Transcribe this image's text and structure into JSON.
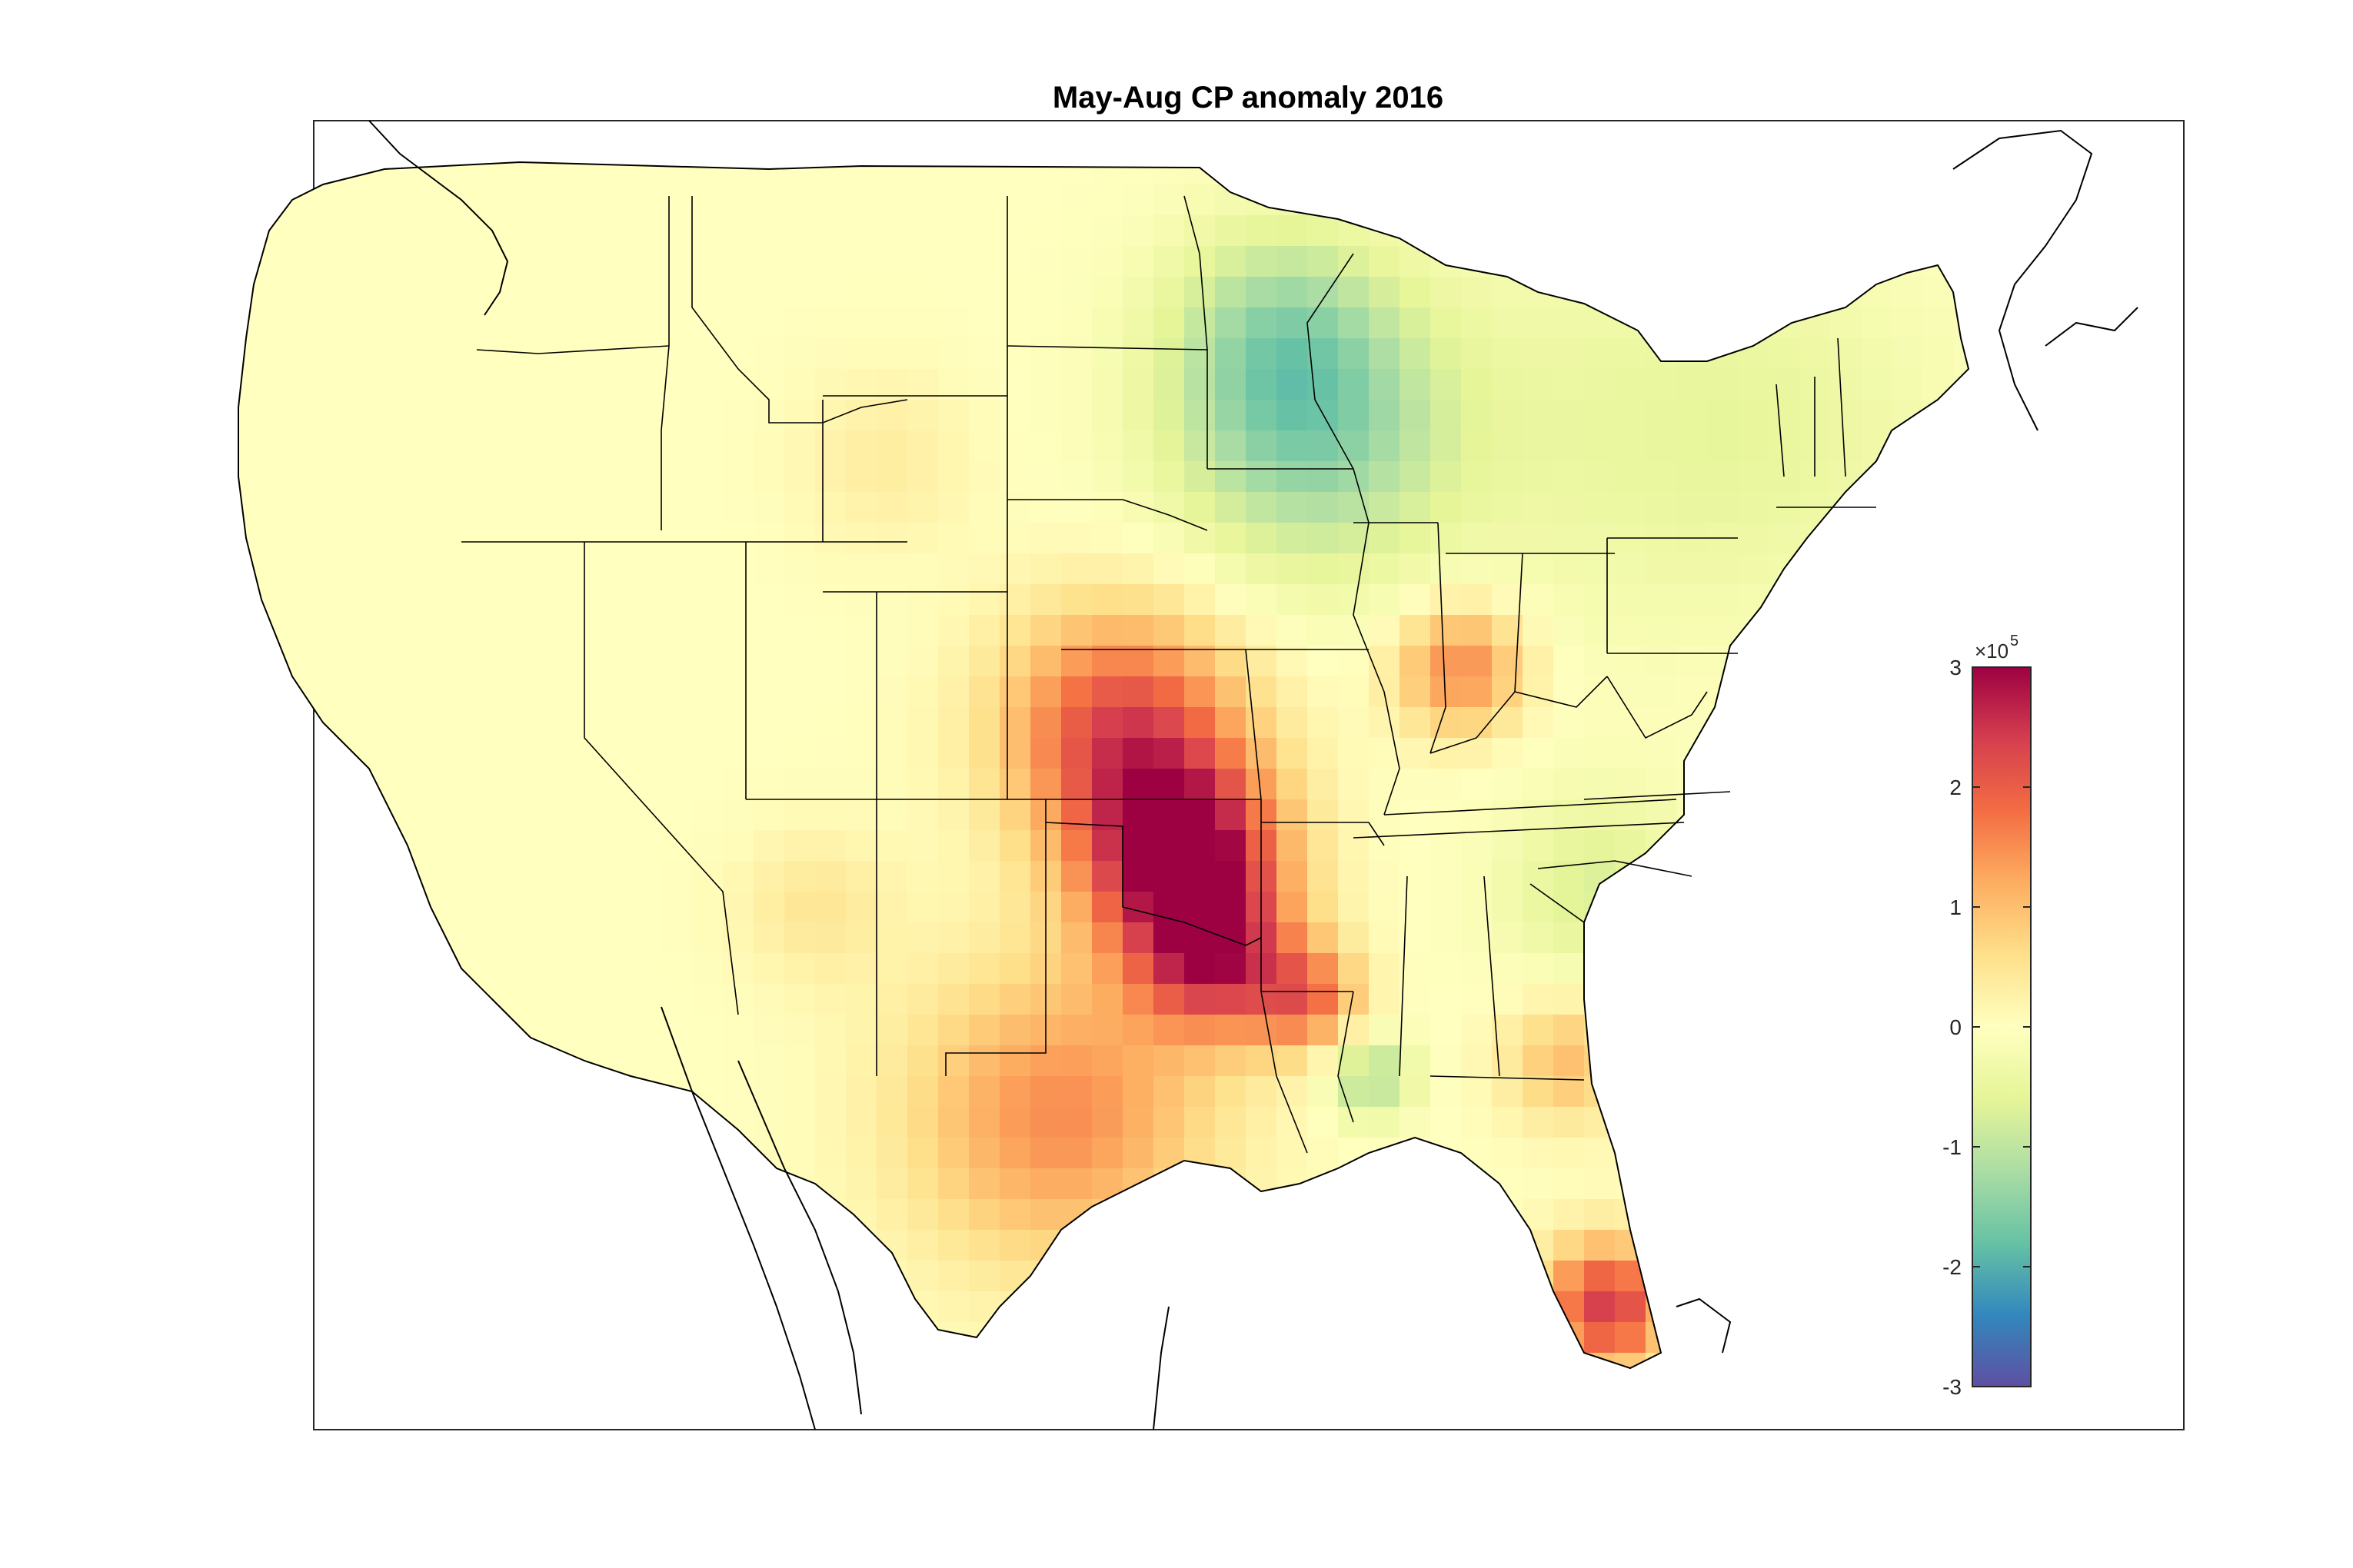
{
  "title": "May-Aug CP anomaly 2016",
  "colorbar": {
    "ticks": [
      "3",
      "2",
      "1",
      "0",
      "-1",
      "-2",
      "-3"
    ],
    "tick_values": [
      3,
      2,
      1,
      0,
      -1,
      -2,
      -3
    ],
    "exponent_base": "×10",
    "exponent": "5",
    "min": -300000,
    "max": 300000,
    "colormap": "spectral",
    "colormap_stops": [
      "#5e4fa2",
      "#3288bd",
      "#66c2a5",
      "#abdda4",
      "#e6f598",
      "#ffffbf",
      "#fee08b",
      "#fdae61",
      "#f46d43",
      "#d53e4f",
      "#9e0142"
    ]
  },
  "map": {
    "region": "Contiguous United States",
    "features": [
      "coastlines",
      "state-boundaries"
    ],
    "ocean_color": "#ffffff",
    "outline_color": "#000000"
  },
  "anomaly_hotspots": [
    {
      "area": "eastern Kansas / Oklahoma",
      "level": "high"
    },
    {
      "area": "southern Florida",
      "level": "high"
    },
    {
      "area": "Texas",
      "level": "moderately high"
    },
    {
      "area": "Indiana",
      "level": "moderately high"
    },
    {
      "area": "Minnesota / Wisconsin / Iowa",
      "level": "low"
    },
    {
      "area": "Carolinas / Georgia",
      "level": "slightly low"
    }
  ]
}
